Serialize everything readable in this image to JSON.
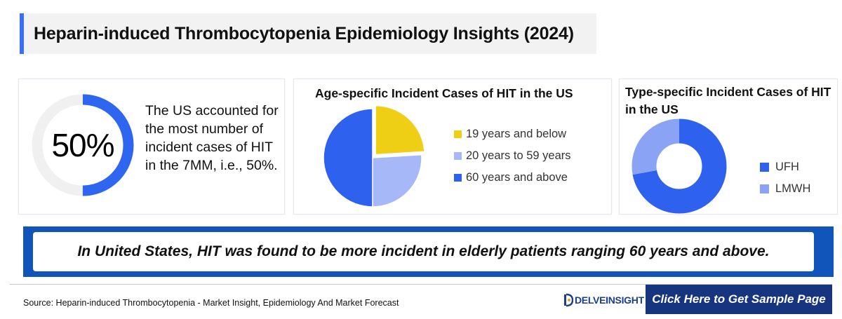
{
  "title": "Heparin-induced Thrombocytopenia Epidemiology Insights (2024)",
  "stat": {
    "value_label": "50%",
    "value": 50,
    "text": "The US accounted for the most number of incident cases of HIT in the 7MM, i.e., 50%.",
    "ring_color": "#2f66f0",
    "track_color": "#f0f0f0"
  },
  "chart_data": [
    {
      "type": "pie",
      "title": "Age-specific Incident Cases of HIT in the US",
      "categories": [
        "19 years and below",
        "20 years to 59 years",
        "60 years and above"
      ],
      "values": [
        24,
        26,
        50
      ],
      "colors": [
        "#efcf16",
        "#a6b8f8",
        "#2e62ee"
      ],
      "exploded_slice": 0,
      "legend": "right"
    },
    {
      "type": "pie",
      "title": "Type-specific Incident Cases of HIT in the US",
      "donut": true,
      "categories": [
        "UFH",
        "LMWH"
      ],
      "values": [
        72,
        28
      ],
      "colors": [
        "#2e62ee",
        "#8aa3f4"
      ],
      "legend": "right"
    }
  ],
  "banner_text": "In United States, HIT was found to be more incident in elderly patients ranging 60 years and above.",
  "source": "Source: Heparin-induced Thrombocytopenia - Market Insight, Epidemiology And Market Forecast",
  "logo_text": "DELVEINSIGHT",
  "cta_label": "Click Here to Get Sample Page"
}
